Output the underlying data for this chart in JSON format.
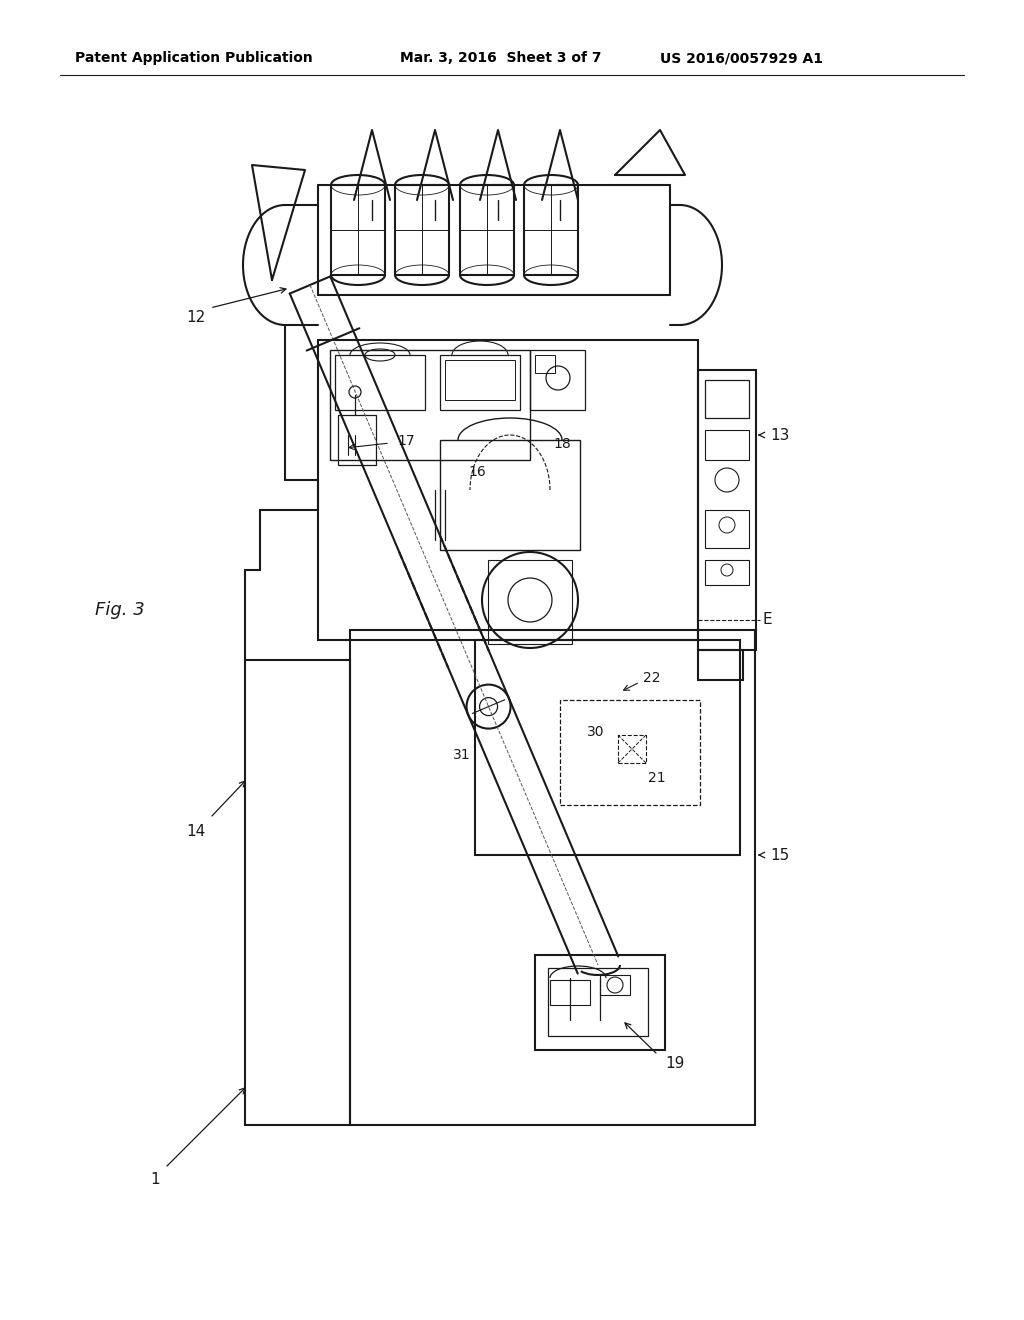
{
  "background_color": "#ffffff",
  "line_color": "#1a1a1a",
  "dashed_color": "#555555",
  "header_left": "Patent Application Publication",
  "header_mid": "Mar. 3, 2016  Sheet 3 of 7",
  "header_right": "US 2016/0057929 A1",
  "fig_label": "Fig. 3"
}
